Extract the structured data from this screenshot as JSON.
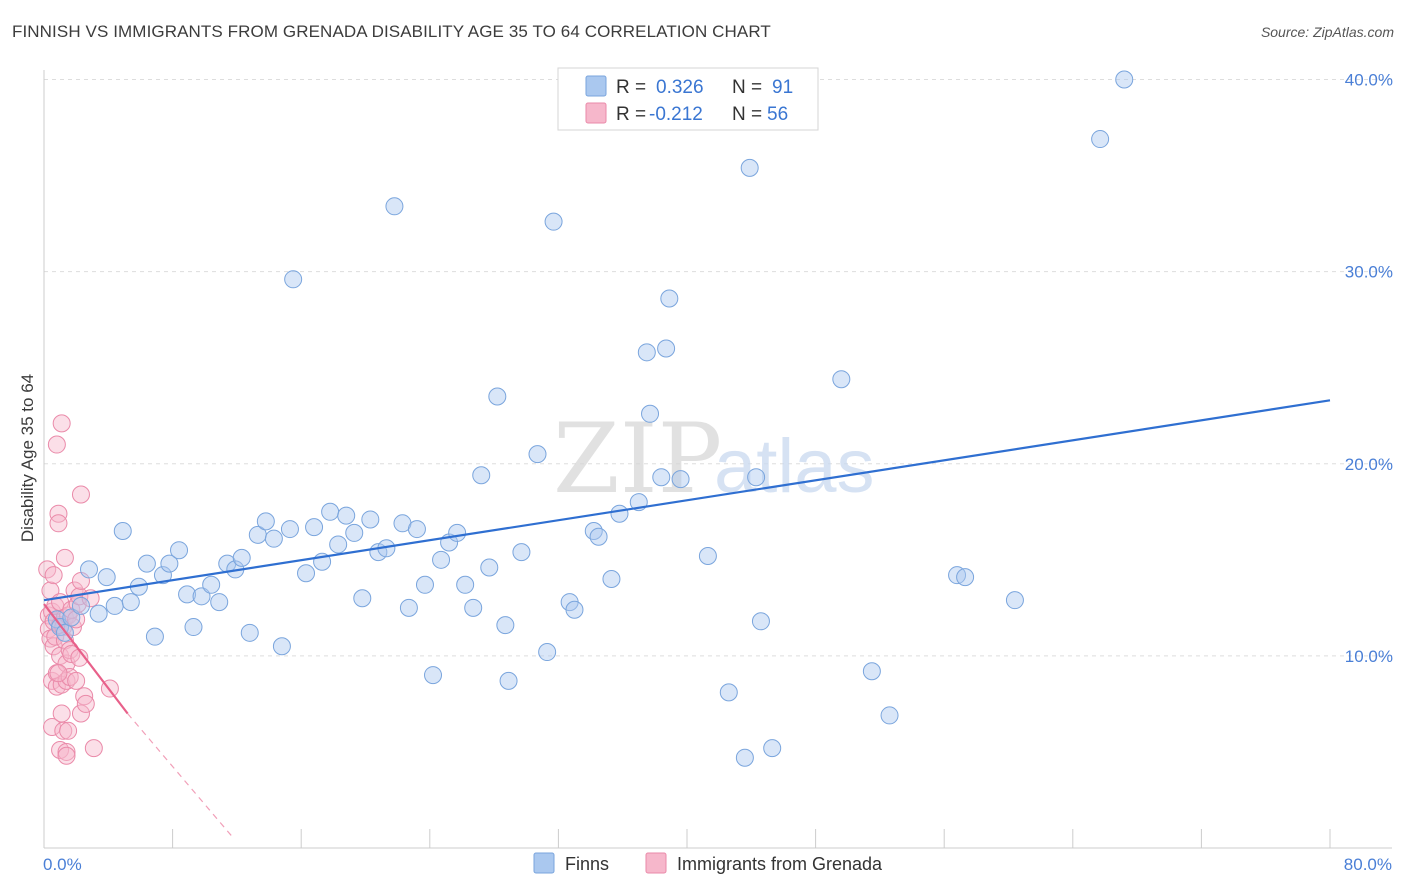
{
  "title": "FINNISH VS IMMIGRANTS FROM GRENADA DISABILITY AGE 35 TO 64 CORRELATION CHART",
  "source": "Source: ZipAtlas.com",
  "watermark": {
    "zip": "ZIP",
    "atlas": "atlas"
  },
  "colors": {
    "finns_fill": "#aac8ef",
    "finns_stroke": "#7aa5dd",
    "finns_line": "#2f6fd1",
    "grenada_fill": "#f6b7cb",
    "grenada_stroke": "#ea8aa9",
    "grenada_line": "#e8608a",
    "axis_text": "#4a7fd6",
    "grid": "#dddddd"
  },
  "legend_box": {
    "rows": [
      {
        "r_label": "R =",
        "r_value": "0.326",
        "n_label": "N =",
        "n_value": "91"
      },
      {
        "r_label": "R =",
        "r_value": "-0.212",
        "n_label": "N =",
        "n_value": "56"
      }
    ]
  },
  "bottom_legend": [
    "Finns",
    "Immigrants from Grenada"
  ],
  "chart_data": {
    "type": "scatter",
    "title": "FINNISH VS IMMIGRANTS FROM GRENADA DISABILITY AGE 35 TO 64 CORRELATION CHART",
    "xlabel": "",
    "ylabel": "Disability Age 35 to 64",
    "xlim": [
      0,
      80
    ],
    "ylim": [
      0,
      42
    ],
    "x_tick_labels": [
      "0.0%",
      "80.0%"
    ],
    "y_ticks": [
      10,
      20,
      30,
      40
    ],
    "y_tick_labels": [
      "10.0%",
      "20.0%",
      "30.0%",
      "40.0%"
    ],
    "grid": true,
    "series": [
      {
        "name": "Finns",
        "R": 0.326,
        "N": 91,
        "trend": {
          "x": [
            0,
            80
          ],
          "y": [
            12.9,
            23.3
          ]
        },
        "points": [
          [
            0.8,
            11.9
          ],
          [
            1.0,
            11.5
          ],
          [
            1.3,
            11.2
          ],
          [
            1.7,
            12.0
          ],
          [
            2.3,
            12.6
          ],
          [
            2.8,
            14.5
          ],
          [
            3.4,
            12.2
          ],
          [
            3.9,
            14.1
          ],
          [
            4.4,
            12.6
          ],
          [
            4.9,
            16.5
          ],
          [
            5.4,
            12.8
          ],
          [
            5.9,
            13.6
          ],
          [
            6.4,
            14.8
          ],
          [
            6.9,
            11.0
          ],
          [
            7.4,
            14.2
          ],
          [
            7.8,
            14.8
          ],
          [
            8.4,
            15.5
          ],
          [
            8.9,
            13.2
          ],
          [
            9.3,
            11.5
          ],
          [
            9.8,
            13.1
          ],
          [
            10.4,
            13.7
          ],
          [
            10.9,
            12.8
          ],
          [
            11.4,
            14.8
          ],
          [
            11.9,
            14.5
          ],
          [
            12.3,
            15.1
          ],
          [
            12.8,
            11.2
          ],
          [
            13.3,
            16.3
          ],
          [
            13.8,
            17.0
          ],
          [
            14.3,
            16.1
          ],
          [
            14.8,
            10.5
          ],
          [
            15.3,
            16.6
          ],
          [
            15.5,
            29.6
          ],
          [
            16.3,
            14.3
          ],
          [
            16.8,
            16.7
          ],
          [
            17.3,
            14.9
          ],
          [
            17.8,
            17.5
          ],
          [
            18.3,
            15.8
          ],
          [
            18.8,
            17.3
          ],
          [
            19.3,
            16.4
          ],
          [
            19.8,
            13.0
          ],
          [
            20.3,
            17.1
          ],
          [
            20.8,
            15.4
          ],
          [
            21.3,
            15.6
          ],
          [
            21.8,
            33.4
          ],
          [
            22.3,
            16.9
          ],
          [
            22.7,
            12.5
          ],
          [
            23.2,
            16.6
          ],
          [
            23.7,
            13.7
          ],
          [
            24.2,
            9.0
          ],
          [
            24.7,
            15.0
          ],
          [
            25.2,
            15.9
          ],
          [
            25.7,
            16.4
          ],
          [
            26.2,
            13.7
          ],
          [
            26.7,
            12.5
          ],
          [
            27.2,
            19.4
          ],
          [
            27.7,
            14.6
          ],
          [
            28.2,
            23.5
          ],
          [
            28.7,
            11.6
          ],
          [
            28.9,
            8.7
          ],
          [
            29.7,
            15.4
          ],
          [
            30.7,
            20.5
          ],
          [
            31.3,
            10.2
          ],
          [
            31.7,
            32.6
          ],
          [
            32.7,
            12.8
          ],
          [
            33.0,
            12.4
          ],
          [
            34.2,
            16.5
          ],
          [
            34.5,
            16.2
          ],
          [
            35.3,
            14.0
          ],
          [
            35.8,
            17.4
          ],
          [
            37.0,
            18.0
          ],
          [
            37.5,
            25.8
          ],
          [
            37.7,
            22.6
          ],
          [
            38.4,
            19.3
          ],
          [
            38.7,
            26.0
          ],
          [
            38.9,
            28.6
          ],
          [
            39.6,
            19.2
          ],
          [
            41.3,
            15.2
          ],
          [
            42.6,
            8.1
          ],
          [
            43.6,
            4.7
          ],
          [
            43.9,
            35.4
          ],
          [
            44.3,
            19.3
          ],
          [
            44.6,
            11.8
          ],
          [
            45.3,
            5.2
          ],
          [
            49.6,
            24.4
          ],
          [
            51.5,
            9.2
          ],
          [
            52.6,
            6.9
          ],
          [
            56.8,
            14.2
          ],
          [
            57.3,
            14.1
          ],
          [
            60.4,
            12.9
          ],
          [
            65.7,
            36.9
          ],
          [
            67.2,
            40.0
          ]
        ]
      },
      {
        "name": "Immigrants from Grenada",
        "R": -0.212,
        "N": 56,
        "trend": {
          "x": [
            0,
            5.2
          ],
          "y": [
            12.7,
            7.0
          ]
        },
        "trend_extension": {
          "x": [
            5.2,
            11.8
          ],
          "y": [
            7.0,
            0.5
          ]
        },
        "points": [
          [
            0.2,
            14.5
          ],
          [
            0.3,
            12.1
          ],
          [
            0.3,
            11.4
          ],
          [
            0.4,
            10.9
          ],
          [
            0.4,
            13.4
          ],
          [
            0.5,
            12.3
          ],
          [
            0.5,
            8.7
          ],
          [
            0.5,
            6.3
          ],
          [
            0.6,
            11.8
          ],
          [
            0.6,
            14.2
          ],
          [
            0.6,
            10.5
          ],
          [
            0.7,
            12.6
          ],
          [
            0.7,
            11.0
          ],
          [
            0.8,
            21.0
          ],
          [
            0.8,
            9.1
          ],
          [
            0.8,
            8.4
          ],
          [
            0.9,
            17.4
          ],
          [
            0.9,
            16.9
          ],
          [
            1.0,
            12.8
          ],
          [
            1.0,
            11.6
          ],
          [
            1.0,
            10.0
          ],
          [
            1.0,
            5.1
          ],
          [
            1.1,
            22.1
          ],
          [
            1.1,
            8.5
          ],
          [
            1.1,
            7.0
          ],
          [
            1.2,
            6.1
          ],
          [
            1.2,
            11.5
          ],
          [
            1.3,
            15.1
          ],
          [
            1.3,
            12.0
          ],
          [
            1.3,
            10.8
          ],
          [
            1.4,
            5.0
          ],
          [
            1.4,
            4.8
          ],
          [
            1.4,
            8.7
          ],
          [
            1.4,
            9.6
          ],
          [
            1.5,
            12.1
          ],
          [
            1.5,
            6.1
          ],
          [
            1.6,
            10.3
          ],
          [
            1.6,
            8.9
          ],
          [
            1.7,
            12.4
          ],
          [
            1.7,
            10.1
          ],
          [
            1.8,
            11.5
          ],
          [
            1.9,
            13.4
          ],
          [
            2.0,
            11.9
          ],
          [
            2.0,
            8.7
          ],
          [
            2.1,
            12.7
          ],
          [
            2.2,
            13.1
          ],
          [
            2.2,
            9.9
          ],
          [
            2.3,
            13.9
          ],
          [
            2.3,
            7.0
          ],
          [
            2.3,
            18.4
          ],
          [
            2.5,
            7.9
          ],
          [
            2.6,
            7.5
          ],
          [
            2.9,
            13.0
          ],
          [
            3.1,
            5.2
          ],
          [
            4.1,
            8.3
          ],
          [
            0.9,
            9.1
          ]
        ]
      }
    ]
  }
}
